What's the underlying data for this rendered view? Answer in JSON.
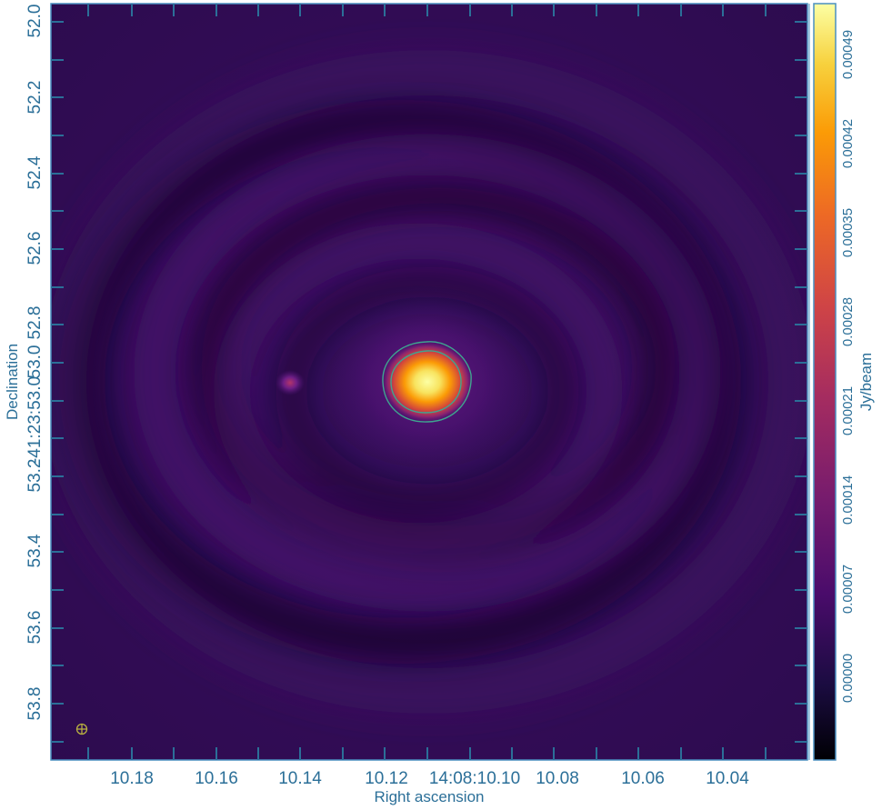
{
  "chart_data": {
    "type": "heatmap",
    "title": "",
    "xlabel": "Right ascension",
    "ylabel": "Declination",
    "x_tick_labels": [
      "10.18",
      "10.16",
      "10.14",
      "10.12",
      "14:08:10.10",
      "10.08",
      "10.06",
      "10.04"
    ],
    "y_tick_labels": [
      "52.0",
      "52.2",
      "52.4",
      "52.6",
      "52.8",
      "53.0",
      "-41:23:53.0",
      "53.2",
      "53.4",
      "53.6",
      "53.8"
    ],
    "colorbar": {
      "label": "Jy/beam",
      "colormap": "inferno",
      "tick_labels": [
        "0.00000",
        "0.00007",
        "0.00014",
        "0.00021",
        "0.00028",
        "0.00035",
        "0.00042",
        "0.00049"
      ],
      "range": [
        -5e-05,
        0.00054
      ]
    },
    "sources": [
      {
        "name": "central-source",
        "peak_jy_per_beam": 0.00054
      },
      {
        "name": "secondary-source",
        "peak_jy_per_beam": 0.00013
      }
    ],
    "contours": {
      "color": "#3fa58f",
      "levels_jy_per_beam": [
        0.00015,
        0.00028
      ]
    },
    "beam_symbol": "⊕"
  },
  "colors": {
    "axis": "#2b6f98",
    "frame": "#4a8fc0",
    "contour": "#3fa58f",
    "beam": "#b8b040"
  }
}
